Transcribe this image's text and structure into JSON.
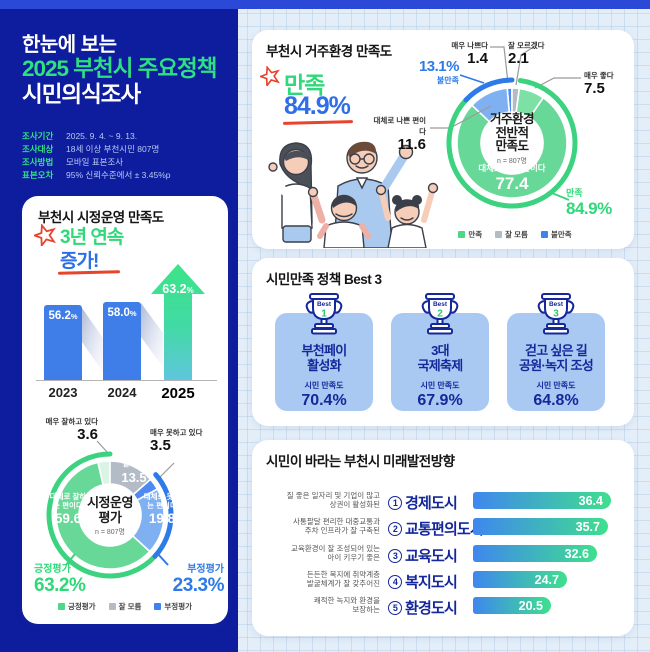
{
  "header": {
    "subtitle": "한눈에 보는",
    "title_line1": "2025 부천시 주요정책",
    "title_line2": "시민의식조사",
    "survey": [
      {
        "label": "조사기간",
        "value": "2025. 9. 4. ~ 9. 13."
      },
      {
        "label": "조사대상",
        "value": "18세 이상 부천시민 807명"
      },
      {
        "label": "조사방법",
        "value": "모바일 표본조사"
      },
      {
        "label": "표본오차",
        "value": "95% 신뢰수준에서 ± 3.45%p"
      }
    ]
  },
  "units": {
    "percent": "%"
  },
  "ops": {
    "title": "부천시 시정운영 만족도",
    "badge1": "3년 연속",
    "badge2": "증가!"
  },
  "living": {
    "title": "부천시 거주환경 만족도",
    "headline_label": "만족",
    "headline_value": "84.9%"
  },
  "best3": {
    "title": "시민만족 정책 Best 3",
    "badge": "Best",
    "metric_label": "시민 만족도",
    "cards": [
      {
        "rank": "1",
        "line1": "부천페이",
        "line2": "활성화",
        "value": "70.4%"
      },
      {
        "rank": "2",
        "line1": "3대",
        "line2": "국제축제",
        "value": "67.9%"
      },
      {
        "rank": "3",
        "line1": "걷고 싶은 길",
        "line2": "공원·녹지 조성",
        "value": "64.8%"
      }
    ]
  },
  "future": {
    "title": "시민이 바라는 부천시 미래발전방향"
  },
  "colors": {
    "navy_bg": "#0e1d9e",
    "top_bar": "#2b49d6",
    "accent_green": "#2fe080",
    "accent_blue": "#2e6fe8",
    "red_accent": "#e8432c",
    "positive_green": "#3bd37f",
    "negative_blue": "#2e7ae8",
    "bar_blue": "#3f7ee9",
    "policy_card_blue": "#a9c9f3",
    "policy_text_navy": "#15289b"
  },
  "chart_data": [
    {
      "id": "ops_trend",
      "type": "bar",
      "title": "부천시 시정운영 만족도",
      "categories": [
        "2023",
        "2024",
        "2025"
      ],
      "values": [
        56.2,
        58.0,
        63.2
      ],
      "value_labels": [
        "56.2",
        "58.0",
        "63.2"
      ],
      "annotation": "3년 연속 증가!",
      "ylim": [
        0,
        70
      ],
      "grid": false
    },
    {
      "id": "ops_eval",
      "type": "donut",
      "center_lines": [
        "시정운영",
        "평가"
      ],
      "sample": "n = 807명",
      "segments": [
        {
          "label": "잘 모름",
          "value": 13.5,
          "display": "13.5",
          "color": "#b3bcc6"
        },
        {
          "label": "매우 못하고 있다",
          "value": 3.5,
          "display": "3.5",
          "color": "#4d8bf0"
        },
        {
          "label": "대체로 못하는 편이다",
          "value": 19.8,
          "display": "19.8",
          "color": "#7fb1f2"
        },
        {
          "label": "대체로 잘하는 편이다",
          "value": 59.6,
          "display": "59.6",
          "color": "#67d897"
        },
        {
          "label": "매우 잘하고 있다",
          "value": 3.6,
          "display": "3.6",
          "color": "#d9f4e4"
        }
      ],
      "outer_arcs": [
        {
          "label": "긍정평가",
          "value": 63.2,
          "display": "63.2%",
          "from": 36.8,
          "to": 100,
          "color": "#3bd37f"
        },
        {
          "label": "부정평가",
          "value": 23.3,
          "display": "23.3%",
          "from": 13.5,
          "to": 36.8,
          "color": "#2e7ae8"
        }
      ],
      "legend": [
        {
          "label": "긍정평가",
          "color": "#4ed886"
        },
        {
          "label": "잘 모름",
          "color": "#b3bcc6"
        },
        {
          "label": "부정평가",
          "color": "#3f82ec"
        }
      ]
    },
    {
      "id": "living_env",
      "type": "donut",
      "center_lines": [
        "거주환경",
        "전반적",
        "만족도"
      ],
      "sample": "n = 807명",
      "segments": [
        {
          "label": "잘 모르겠다",
          "value": 2.1,
          "display": "2.1",
          "color": "#b3bcc6"
        },
        {
          "label": "매우 좋다",
          "value": 7.5,
          "display": "7.5",
          "color": "#7de0a4"
        },
        {
          "label": "대체로 좋은 편이다",
          "value": 77.4,
          "display": "77.4",
          "color": "#67d897"
        },
        {
          "label": "대체로 나쁜 편이다",
          "value": 11.6,
          "display": "11.6",
          "color": "#7fb1f2"
        },
        {
          "label": "매우 나쁘다",
          "value": 1.4,
          "display": "1.4",
          "color": "#4d8bf0"
        }
      ],
      "outer_arcs": [
        {
          "label": "만족",
          "value": 84.9,
          "display": "84.9%",
          "from": 2.1,
          "to": 87.0,
          "color": "#3bd37f"
        },
        {
          "label": "불만족",
          "value": 13.1,
          "display": "13.1%",
          "from": 87.0,
          "to": 100,
          "color": "#2e7ae8"
        }
      ],
      "legend": [
        {
          "label": "만족",
          "color": "#4ed886"
        },
        {
          "label": "잘 모름",
          "color": "#b3bcc6"
        },
        {
          "label": "불만족",
          "color": "#3f82ec"
        }
      ]
    },
    {
      "id": "future_direction",
      "type": "bar",
      "orientation": "horizontal",
      "title": "시민이 바라는 부천시 미래발전방향",
      "xlim": [
        0,
        40
      ],
      "grid": false,
      "rows": [
        {
          "num": "1",
          "desc1": "질 좋은 일자리 및 기업이 많고",
          "desc2": "상권이 활성화된",
          "name": "경제도시",
          "value": 36.4,
          "display": "36.4"
        },
        {
          "num": "2",
          "desc1": "사통팔달 편리한 대중교통과",
          "desc2": "주차 인프라가 잘 구축된",
          "name": "교통편의도시",
          "value": 35.7,
          "display": "35.7"
        },
        {
          "num": "3",
          "desc1": "교육환경이 잘 조성되어 있는",
          "desc2": "아이 키우기 좋은",
          "name": "교육도시",
          "value": 32.6,
          "display": "32.6"
        },
        {
          "num": "4",
          "desc1": "든든한 복지에 취약계층",
          "desc2": "발굴체계가 잘 갖추어진",
          "name": "복지도시",
          "value": 24.7,
          "display": "24.7"
        },
        {
          "num": "5",
          "desc1": "쾌적한 녹지와 환경을",
          "desc2": "보장하는",
          "name": "환경도시",
          "value": 20.5,
          "display": "20.5"
        }
      ]
    }
  ]
}
